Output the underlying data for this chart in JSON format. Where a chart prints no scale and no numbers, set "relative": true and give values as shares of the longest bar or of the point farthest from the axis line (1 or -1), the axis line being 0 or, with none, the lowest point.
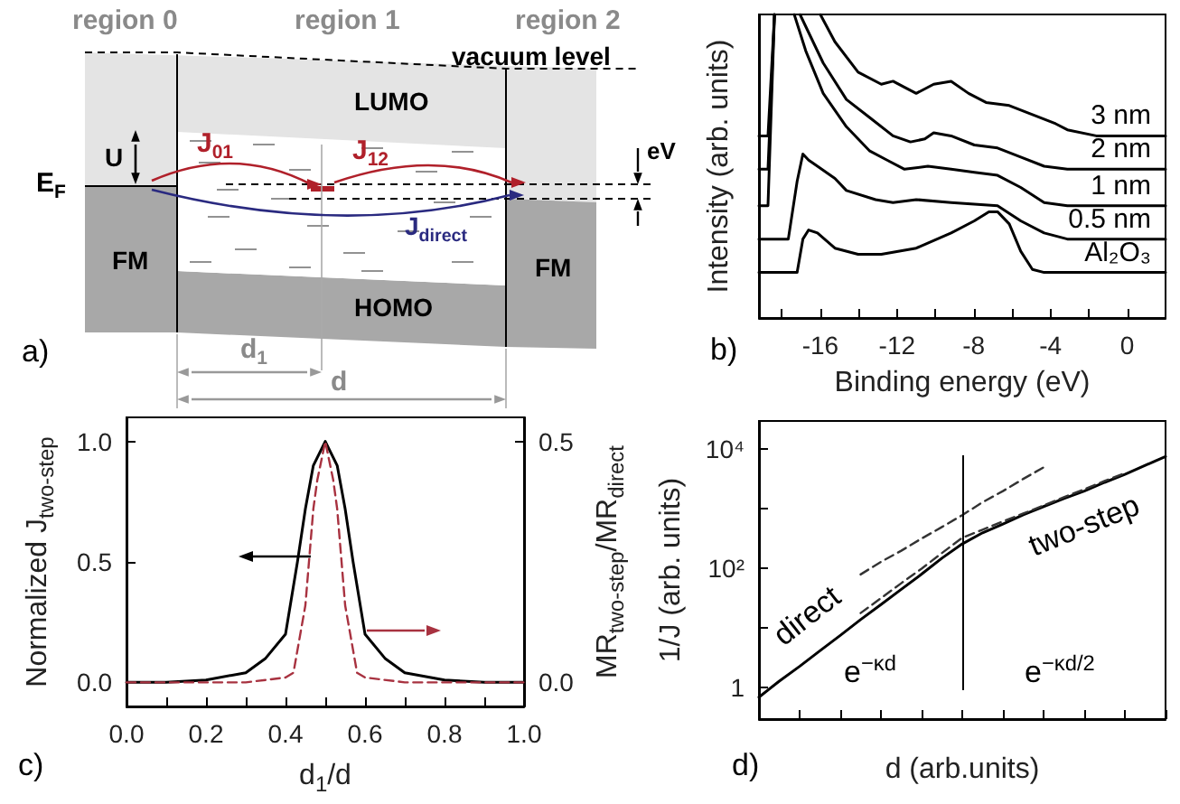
{
  "chart_data": [
    {
      "type": "other",
      "annotations": [
        "region 0",
        "region 1",
        "region 2",
        "vacuum level",
        "LUMO",
        "HOMO",
        "FM",
        "FM",
        "U",
        "E$_{F}$",
        "J$_{01}$",
        "J$_{12}$",
        "J$_{direct}$",
        "eV",
        "d$_{1}$",
        "d",
        "a)"
      ]
    },
    {
      "type": "line",
      "xlabel": "Binding energy (eV)",
      "ylabel": "Intensity (arb. units)",
      "relative": true,
      "xlim": [
        -19.2,
        2
      ],
      "xticks": [
        {
          "value": -18,
          "label": null
        },
        -16,
        {
          "value": -14,
          "label": null
        },
        -12,
        {
          "value": -10,
          "label": null
        },
        -8,
        {
          "value": -6,
          "label": null
        },
        -4,
        {
          "value": -2,
          "label": null
        },
        0
      ],
      "tick_labels": "x",
      "marker": "none",
      "annotations": [
        "b)"
      ],
      "series": [
        {
          "name": "3 nm",
          "color": "#000000",
          "x": [
            -19.2,
            -18.73,
            -18.39,
            -17.9,
            -16,
            -15.24,
            -14.03,
            -12.82,
            -12.21,
            -11.61,
            -11.0,
            -10.09,
            -9.18,
            -8.27,
            -7.36,
            -6.15,
            -4.94,
            -3.73,
            -3.12,
            -1.61,
            2
          ],
          "values": [
            0.6,
            0.6,
            1,
            null,
            1,
            0.91,
            0.81,
            0.77,
            0.78,
            0.76,
            0.74,
            0.77,
            0.78,
            0.74,
            0.71,
            0.7,
            0.67,
            0.64,
            0.62,
            0.6,
            0.6
          ]
        },
        {
          "name": "2 nm",
          "color": "#000000",
          "x": [
            -19.2,
            -18.73,
            -18.39,
            -17.9,
            -17.06,
            -15.85,
            -14.64,
            -13.42,
            -12.21,
            -11.3,
            -10.55,
            -10.09,
            -9.18,
            -7.97,
            -6.76,
            -5.55,
            -4.33,
            -3.12,
            2
          ],
          "values": [
            0.49,
            0.49,
            1,
            null,
            1,
            0.84,
            0.72,
            0.66,
            0.6,
            0.58,
            0.59,
            0.61,
            0.6,
            0.57,
            0.56,
            0.53,
            0.5,
            0.49,
            0.49
          ]
        },
        {
          "name": "1 nm",
          "color": "#000000",
          "x": [
            -19.2,
            -18.73,
            -18.39,
            -17.9,
            -17.36,
            -16.76,
            -15.85,
            -14.64,
            -13.42,
            -12.52,
            -11.61,
            -10.39,
            -9.18,
            -7.97,
            -6.76,
            -5.55,
            -4.33,
            -3.12,
            2
          ],
          "values": [
            0.37,
            0.37,
            1,
            null,
            1,
            0.88,
            0.74,
            0.63,
            0.55,
            0.52,
            0.49,
            0.5,
            0.49,
            0.48,
            0.47,
            0.43,
            0.38,
            0.37,
            0.37
          ]
        },
        {
          "name": "0.5 nm",
          "color": "#000000",
          "x": [
            -19.2,
            -17.67,
            -17.21,
            -16.91,
            -16.61,
            -16.15,
            -15.24,
            -14.64,
            -13.12,
            -12.21,
            -11.0,
            -9.18,
            -6.76,
            -5.55,
            -4.33,
            -3.12,
            2
          ],
          "values": [
            0.26,
            0.26,
            0.45,
            0.54,
            0.52,
            0.5,
            0.46,
            0.42,
            0.39,
            0.38,
            0.39,
            0.38,
            0.37,
            0.32,
            0.28,
            0.26,
            0.26
          ]
        },
        {
          "name": "Al₂O₃",
          "color": "#000000",
          "x": [
            -19.2,
            -17.21,
            -16.91,
            -16.61,
            -16.15,
            -15.24,
            -14.03,
            -12.82,
            -11.0,
            -9.18,
            -7.97,
            -7.21,
            -6.76,
            -6.15,
            -5.55,
            -4.94,
            -4.33,
            2
          ],
          "values": [
            0.15,
            0.15,
            0.26,
            0.29,
            0.28,
            0.23,
            0.21,
            0.21,
            0.23,
            0.28,
            0.32,
            0.35,
            0.35,
            0.31,
            0.22,
            0.16,
            0.15,
            0.15
          ]
        }
      ]
    },
    {
      "type": "line",
      "xlabel": "d$_{1}$/d",
      "ylabel": "Normalized J$_{two-step}$",
      "y2label": "MR$_{two-step}$/MR$_{direct}$",
      "xlim": [
        0,
        1
      ],
      "xticks": [
        {
          "value": 0,
          "label": "0.0"
        },
        {
          "value": 0.1,
          "label": null
        },
        {
          "value": 0.2,
          "label": "0.2"
        },
        {
          "value": 0.3,
          "label": null
        },
        {
          "value": 0.4,
          "label": "0.4"
        },
        {
          "value": 0.5,
          "label": null
        },
        {
          "value": 0.6,
          "label": "0.6"
        },
        {
          "value": 0.7,
          "label": null
        },
        {
          "value": 0.8,
          "label": "0.8"
        },
        {
          "value": 0.9,
          "label": null
        },
        {
          "value": 1,
          "label": "1.0"
        }
      ],
      "ylim": [
        -0.1,
        1.1
      ],
      "yticks": [
        {
          "value": 0,
          "label": "0.0"
        },
        {
          "value": 0.5,
          "label": "0.5"
        },
        {
          "value": 1,
          "label": "1.0"
        }
      ],
      "y2lim": [
        -0.05,
        0.55
      ],
      "y2ticks": [
        {
          "value": 0,
          "label": "0.0"
        },
        {
          "value": 0.5,
          "label": "0.5"
        }
      ],
      "marker": "none",
      "annotations": [
        "c)"
      ],
      "series": [
        {
          "color": "#000000",
          "x": [
            0,
            0.1,
            0.2,
            0.3,
            0.35,
            0.4,
            0.43,
            0.45,
            0.47,
            0.5,
            0.53,
            0.55,
            0.57,
            0.6,
            0.65,
            0.7,
            0.8,
            0.9,
            1
          ],
          "values": [
            0,
            0,
            0.01,
            0.04,
            0.1,
            0.2,
            0.5,
            0.72,
            0.9,
            1,
            0.9,
            0.72,
            0.5,
            0.2,
            0.1,
            0.04,
            0.01,
            0,
            0
          ]
        },
        {
          "color": "#a83240",
          "axis": "y2",
          "line_style": "dashed",
          "x": [
            0,
            0.2,
            0.3,
            0.4,
            0.42,
            0.45,
            0.47,
            0.48,
            0.5,
            0.52,
            0.53,
            0.55,
            0.58,
            0.6,
            0.7,
            0.8,
            1
          ],
          "values": [
            0,
            0,
            0,
            0.01,
            0.02,
            0.16,
            0.36,
            0.42,
            0.5,
            0.42,
            0.36,
            0.16,
            0.02,
            0.01,
            0,
            0,
            0
          ]
        }
      ]
    },
    {
      "type": "line",
      "xlabel": "d (arb.units)",
      "ylabel": "1/J (arb. units)",
      "log": "y",
      "ylim": [
        0.3,
        30000
      ],
      "yticks": [
        1,
        {
          "value": 10,
          "label": null
        },
        {
          "value": 100,
          "label": "10²"
        },
        {
          "value": 1000,
          "label": null
        },
        {
          "value": 10000,
          "label": "10⁴"
        }
      ],
      "tick_labels": "y",
      "marker": "none",
      "categories": [
        null,
        null,
        null,
        null,
        null,
        null,
        null,
        null,
        null,
        null,
        null,
        null,
        null,
        null,
        null,
        null,
        null,
        null,
        null,
        null,
        null
      ],
      "annotations": [
        "direct",
        "two-step",
        "e$^{−κd}$",
        "e$^{−κd/2}$",
        "d)"
      ],
      "series": [
        {
          "color": "#000000",
          "values": [
            0.7,
            1.3,
            2.3,
            4.2,
            7.6,
            14,
            25,
            45,
            81,
            150,
            260,
            400,
            560,
            800,
            1100,
            1500,
            2000,
            2800,
            3800,
            5400,
            7600
          ]
        },
        {
          "color": "#333333",
          "line_style": "dashed",
          "values": [
            null,
            null,
            null,
            null,
            null,
            80,
            130,
            200,
            320,
            500,
            790,
            1300,
            2000,
            3200,
            5000,
            null,
            null,
            null,
            null,
            null,
            null
          ]
        },
        {
          "color": "#333333",
          "line_style": "dashed",
          "values": [
            null,
            null,
            null,
            null,
            null,
            18,
            32,
            57,
            100,
            183,
            330,
            450,
            620,
            840,
            1150,
            1580,
            2150,
            2950,
            4000,
            null,
            null
          ]
        }
      ]
    }
  ]
}
